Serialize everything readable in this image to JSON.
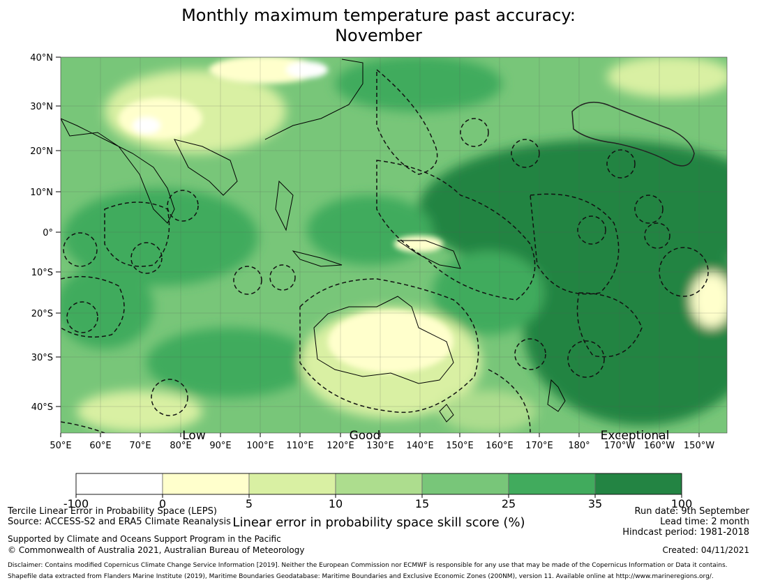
{
  "title_line1": "Monthly maximum temperature past accuracy:",
  "title_line2": "November",
  "lat_labels": [
    "40°N",
    "30°N",
    "20°N",
    "10°N",
    "0°",
    "10°S",
    "20°S",
    "30°S",
    "40°S"
  ],
  "lon_labels": [
    "50°E",
    "60°E",
    "70°E",
    "80°E",
    "90°E",
    "100°E",
    "110°E",
    "120°E",
    "130°E",
    "140°E",
    "150°E",
    "160°E",
    "170°E",
    "180°",
    "170°W",
    "160°W",
    "150°W"
  ],
  "category_labels": [
    "Low",
    "Good",
    "Exceptional"
  ],
  "colorbar": {
    "ticks": [
      "-100",
      "0",
      "5",
      "10",
      "15",
      "25",
      "35",
      "100"
    ],
    "colors": [
      "#ffffff",
      "#ffffcc",
      "#d9f0a3",
      "#addd8e",
      "#78c679",
      "#41ab5d",
      "#238443"
    ],
    "label": "Linear error in probability space skill score (%)"
  },
  "footer": {
    "left1": "Tercile Linear Error in Probability Space (LEPS)",
    "left2": "Source: ACCESS-S2 and ERA5 Climate Reanalysis",
    "left3": "Supported by Climate and Oceans Support Program in the Pacific",
    "left4": "© Commonwealth of Australia 2021, Australian Bureau of Meteorology",
    "right1": "Run date: 9th September",
    "right2": "Lead time: 2 month",
    "right3": "Hindcast period: 1981-2018",
    "right4": "Created: 04/11/2021",
    "disclaimer1": "Disclaimer: Contains modified Copernicus Climate Change Service Information [2019]. Neither the European Commission nor ECMWF is responsible for any use that may be made of the Copernicus Information or Data it contains.",
    "disclaimer2": "Shapefile data extracted from Flanders Marine Institute (2019), Maritime Boundaries Geodatabase: Maritime Boundaries and Exclusive Economic Zones (200NM), version 11. Available online at http://www.marineregions.org/."
  }
}
